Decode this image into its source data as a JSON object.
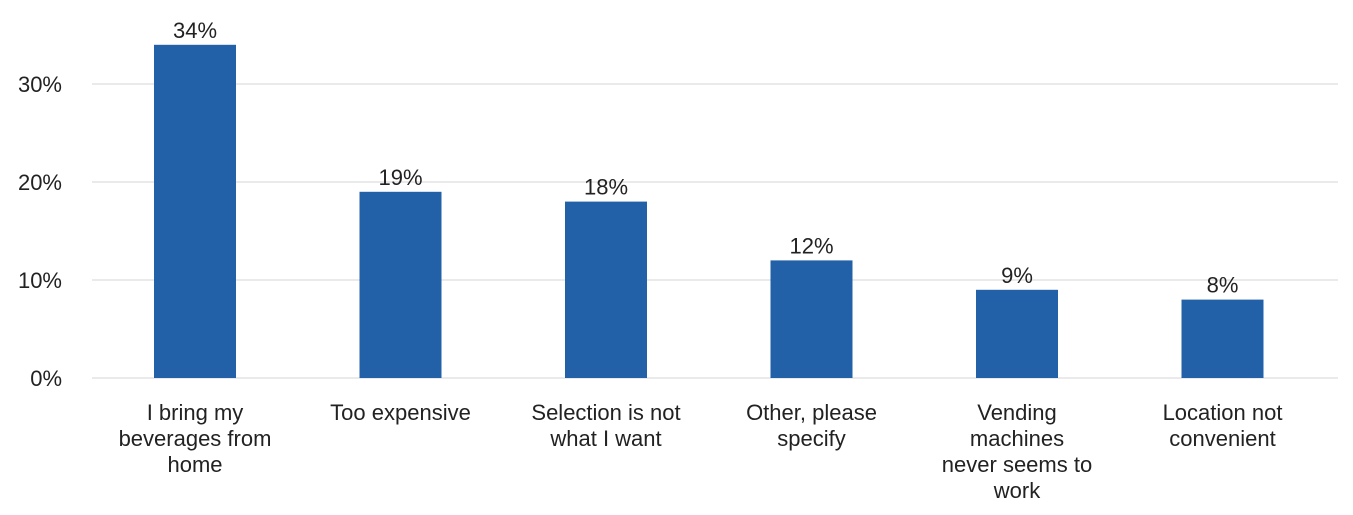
{
  "chart_data": {
    "type": "bar",
    "categories": [
      "I bring my beverages from home",
      "Too expensive",
      "Selection is not what I want",
      "Other, please specify",
      "Vending machines never seems to work",
      "Location not convenient"
    ],
    "category_label_lines": [
      [
        "I bring my",
        "beverages from",
        "home"
      ],
      [
        "Too expensive"
      ],
      [
        "Selection is not",
        "what I want"
      ],
      [
        "Other, please",
        "specify"
      ],
      [
        "Vending",
        "machines",
        "never seems to",
        "work"
      ],
      [
        "Location not",
        "convenient"
      ]
    ],
    "values": [
      34,
      19,
      18,
      12,
      9,
      8
    ],
    "data_labels": [
      "34%",
      "19%",
      "18%",
      "12%",
      "9%",
      "8%"
    ],
    "y_ticks": [
      0,
      10,
      20,
      30
    ],
    "y_tick_labels": [
      "0%",
      "10%",
      "20%",
      "30%"
    ],
    "ylim": [
      0,
      34
    ],
    "title": "",
    "xlabel": "",
    "ylabel": "",
    "grid": true,
    "legend": "none",
    "bar_color": "#2260a8",
    "grid_color": "#e3e3e3"
  }
}
